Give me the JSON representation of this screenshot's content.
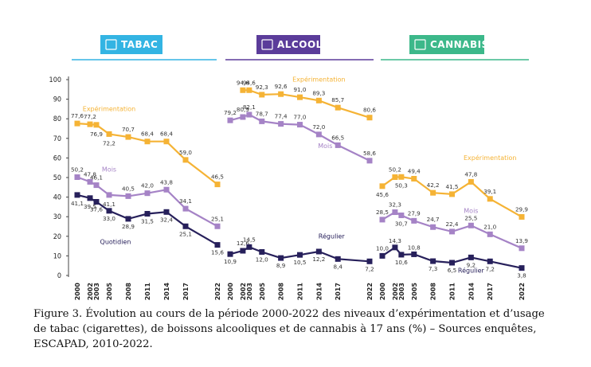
{
  "caption": "Figure 3. Évolution au cours de la période 2000-2022 des niveaux d’expérimentation et d’usage de tabac (cigarettes), de boissons alcooliques et de cannabis à 17 ans (%) – Sources enquêtes, ESCAPAD, 2010-2022.",
  "colors": {
    "experimentation": "#f5b335",
    "mois": "#a583c6",
    "regulier": "#27205b",
    "tabac_banner": "#33b4e3",
    "alcool_banner": "#5b3c9a",
    "cannabis_banner": "#3cb88a",
    "banner_rule_tabac": "#33b4e3",
    "banner_rule_alcool": "#5b3c9a",
    "banner_rule_cannabis": "#3cb88a"
  },
  "chart_data": {
    "type": "line",
    "ylim": [
      0,
      100
    ],
    "yticks": [
      0,
      10,
      20,
      30,
      40,
      50,
      60,
      70,
      80,
      90,
      100
    ],
    "panels": [
      {
        "name": "TABAC",
        "icon": "cigarette-icon",
        "years": [
          "2000",
          "2002",
          "2003",
          "2005",
          "2008",
          "2011",
          "2014",
          "2017",
          "2022"
        ],
        "series": [
          {
            "key": "experimentation",
            "name": "Expérimentation",
            "values": [
              77.6,
              77.2,
              76.9,
              72.2,
              70.7,
              68.4,
              68.4,
              59.0,
              46.5
            ]
          },
          {
            "key": "mois",
            "name": "Mois",
            "values": [
              50.2,
              47.8,
              46.1,
              41.1,
              40.5,
              42.0,
              43.8,
              34.1,
              25.1
            ]
          },
          {
            "key": "regulier",
            "name": "Quotidien",
            "values": [
              41.1,
              39.5,
              37.6,
              33.0,
              28.9,
              31.5,
              32.4,
              25.1,
              15.6
            ]
          }
        ]
      },
      {
        "name": "ALCOOL",
        "icon": "glass-icon",
        "years": [
          "2000",
          "2002",
          "2003",
          "2005",
          "2008",
          "2011",
          "2014",
          "2017",
          "2022"
        ],
        "series": [
          {
            "key": "experimentation",
            "name": "Expérimentation",
            "values": [
              null,
              94.6,
              94.6,
              92.3,
              92.6,
              91.0,
              89.3,
              85.7,
              80.6
            ]
          },
          {
            "key": "mois",
            "name": "Mois",
            "values": [
              79.2,
              80.9,
              82.1,
              78.7,
              77.4,
              77.0,
              72.0,
              66.5,
              58.6
            ]
          },
          {
            "key": "regulier",
            "name": "Régulier",
            "values": [
              10.9,
              12.6,
              14.5,
              12.0,
              8.9,
              10.5,
              12.2,
              8.4,
              7.2
            ]
          }
        ]
      },
      {
        "name": "CANNABIS",
        "icon": "leaf-icon",
        "years": [
          "2000",
          "2002",
          "2003",
          "2005",
          "2008",
          "2011",
          "2014",
          "2017",
          "2022"
        ],
        "series": [
          {
            "key": "experimentation",
            "name": "Expérimentation",
            "values": [
              45.6,
              50.2,
              50.3,
              49.4,
              42.2,
              41.5,
              47.8,
              39.1,
              29.9
            ]
          },
          {
            "key": "mois",
            "name": "Mois",
            "values": [
              28.5,
              32.3,
              30.7,
              27.9,
              24.7,
              22.4,
              25.5,
              21.0,
              13.9
            ]
          },
          {
            "key": "regulier",
            "name": "Régulier",
            "values": [
              10.0,
              14.3,
              10.6,
              10.8,
              7.3,
              6.5,
              9.2,
              7.2,
              3.8
            ]
          }
        ]
      }
    ]
  }
}
